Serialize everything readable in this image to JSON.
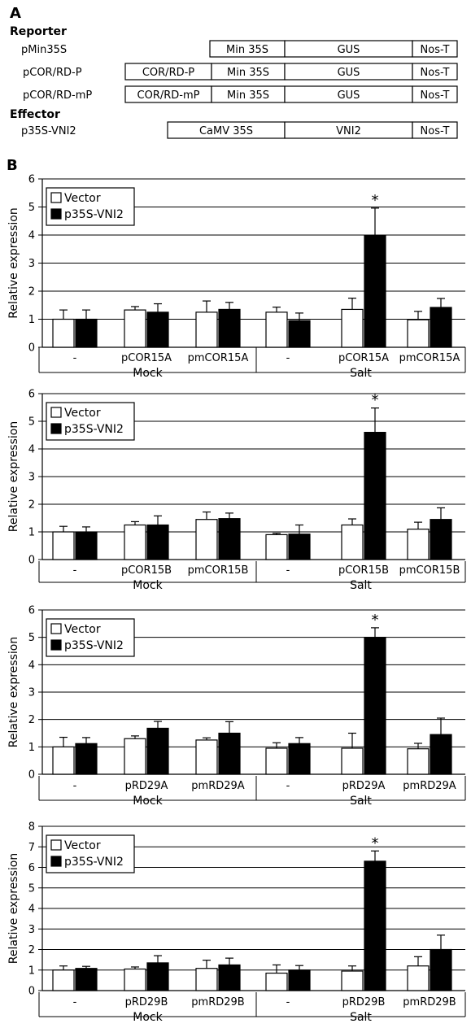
{
  "panel_a": {
    "label": "A",
    "reporter_heading": "Reporter",
    "effector_heading": "Effector",
    "constructs": [
      {
        "name": "pMin35S",
        "parts": [
          "Min 35S",
          "GUS",
          "Nos-T"
        ]
      },
      {
        "name": "pCOR/RD-P",
        "parts": [
          "COR/RD-P",
          "Min 35S",
          "GUS",
          "Nos-T"
        ]
      },
      {
        "name": "pCOR/RD-mP",
        "parts": [
          "COR/RD-mP",
          "Min 35S",
          "GUS",
          "Nos-T"
        ]
      },
      {
        "name": "p35S-VNI2",
        "parts": [
          "CaMV 35S",
          "VNI2",
          "Nos-T"
        ]
      }
    ]
  },
  "panel_b": {
    "label": "B",
    "ylabel": "Relative expression",
    "legend": [
      "Vector",
      "p35S-VNI2"
    ],
    "colors": {
      "vector": "#ffffff",
      "vni2": "#000000"
    },
    "significance_mark": "*"
  },
  "chart_data": [
    {
      "type": "bar",
      "ylabel": "Relative expression",
      "ylim": [
        0,
        6
      ],
      "yticks": [
        "0",
        "1",
        "2",
        "3",
        "4",
        "5",
        "6"
      ],
      "categories": [
        "-",
        "pCOR15A",
        "pmCOR15A",
        "-",
        "pCOR15A",
        "pmCOR15A"
      ],
      "groups": [
        "Mock",
        "Salt"
      ],
      "series": [
        {
          "name": "Vector",
          "values": [
            1.0,
            1.33,
            1.25,
            1.25,
            1.35,
            0.98
          ],
          "errors": [
            0.33,
            0.12,
            0.4,
            0.18,
            0.4,
            0.3
          ]
        },
        {
          "name": "p35S-VNI2",
          "values": [
            1.0,
            1.25,
            1.35,
            0.95,
            3.98,
            1.42
          ],
          "errors": [
            0.33,
            0.3,
            0.25,
            0.27,
            0.98,
            0.32
          ]
        }
      ],
      "significant": [
        4
      ],
      "legend_position": "top-left",
      "grid": true
    },
    {
      "type": "bar",
      "ylabel": "Relative expression",
      "ylim": [
        0,
        6
      ],
      "yticks": [
        "0",
        "1",
        "2",
        "3",
        "4",
        "5",
        "6"
      ],
      "categories": [
        "-",
        "pCOR15B",
        "pmCOR15B",
        "-",
        "pCOR15B",
        "pmCOR15B"
      ],
      "groups": [
        "Mock",
        "Salt"
      ],
      "series": [
        {
          "name": "Vector",
          "values": [
            1.0,
            1.25,
            1.45,
            0.9,
            1.25,
            1.1
          ],
          "errors": [
            0.2,
            0.12,
            0.27,
            0.05,
            0.22,
            0.25
          ]
        },
        {
          "name": "p35S-VNI2",
          "values": [
            1.0,
            1.25,
            1.48,
            0.92,
            4.6,
            1.45
          ],
          "errors": [
            0.18,
            0.33,
            0.2,
            0.33,
            0.88,
            0.42
          ]
        }
      ],
      "significant": [
        4
      ],
      "legend_position": "top-left",
      "grid": true
    },
    {
      "type": "bar",
      "ylabel": "Relative expression",
      "ylim": [
        0,
        6
      ],
      "yticks": [
        "0",
        "1",
        "2",
        "3",
        "4",
        "5",
        "6"
      ],
      "categories": [
        "-",
        "pRD29A",
        "pmRD29A",
        "-",
        "pRD29A",
        "pmRD29A"
      ],
      "groups": [
        "Mock",
        "Salt"
      ],
      "series": [
        {
          "name": "Vector",
          "values": [
            1.0,
            1.3,
            1.25,
            0.95,
            0.95,
            0.93
          ],
          "errors": [
            0.35,
            0.1,
            0.08,
            0.2,
            0.55,
            0.2
          ]
        },
        {
          "name": "p35S-VNI2",
          "values": [
            1.12,
            1.68,
            1.5,
            1.12,
            5.0,
            1.45
          ],
          "errors": [
            0.22,
            0.25,
            0.42,
            0.22,
            0.35,
            0.6
          ]
        }
      ],
      "significant": [
        4
      ],
      "legend_position": "top-left",
      "grid": true
    },
    {
      "type": "bar",
      "ylabel": "Relative expression",
      "ylim": [
        0,
        8
      ],
      "yticks": [
        "0",
        "1",
        "2",
        "3",
        "4",
        "5",
        "6",
        "7",
        "8"
      ],
      "categories": [
        "-",
        "pRD29B",
        "pmRD29B",
        "-",
        "pRD29B",
        "pmRD29B"
      ],
      "groups": [
        "Mock",
        "Salt"
      ],
      "series": [
        {
          "name": "Vector",
          "values": [
            1.0,
            1.05,
            1.08,
            0.85,
            0.95,
            1.2
          ],
          "errors": [
            0.2,
            0.1,
            0.4,
            0.4,
            0.25,
            0.45
          ]
        },
        {
          "name": "p35S-VNI2",
          "values": [
            1.08,
            1.35,
            1.25,
            1.0,
            6.3,
            2.0
          ],
          "errors": [
            0.1,
            0.35,
            0.33,
            0.22,
            0.5,
            0.7
          ]
        }
      ],
      "significant": [
        4
      ],
      "legend_position": "top-left",
      "grid": true
    }
  ]
}
